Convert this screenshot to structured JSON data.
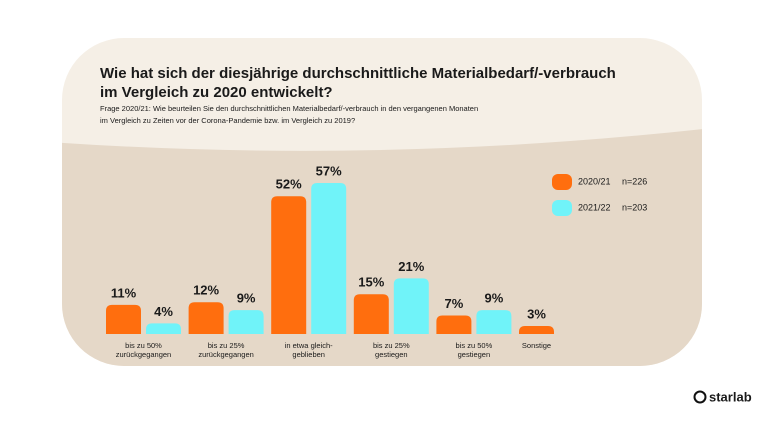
{
  "chart_data": {
    "type": "bar",
    "title": [
      "Wie hat sich der diesjährige durchschnittliche Materialbedarf/-verbrauch",
      "im Vergleich zu 2020 entwickelt?"
    ],
    "subtitle": [
      "Frage 2020/21: Wie beurteilen Sie den durchschnittlichen Materialbedarf/-verbrauch in den vergangenen Monaten",
      "im Vergleich zu Zeiten vor der Corona-Pandemie bzw. im Vergleich zu 2019?"
    ],
    "categories": [
      [
        "bis zu 50%",
        "zurückgegangen"
      ],
      [
        "bis zu 25%",
        "zurückgegangen"
      ],
      [
        "in etwa gleich-",
        "geblieben"
      ],
      [
        "bis zu 25%",
        "gestiegen"
      ],
      [
        "bis zu 50%",
        "gestiegen"
      ],
      [
        "Sonstige"
      ]
    ],
    "series": [
      {
        "name": "2020/21",
        "n": "n=226",
        "color": "#ff6e0e",
        "values": [
          11,
          12,
          52,
          15,
          7,
          3
        ],
        "value_labels": [
          "11%",
          "12%",
          "52%",
          "15%",
          "7%",
          "3%"
        ]
      },
      {
        "name": "2021/22",
        "n": "n=203",
        "color": "#70f3f9",
        "values": [
          4,
          9,
          57,
          21,
          9,
          null
        ],
        "value_labels": [
          "4%",
          "9%",
          "57%",
          "21%",
          "9%",
          null
        ]
      }
    ]
  },
  "logo": "starlab"
}
